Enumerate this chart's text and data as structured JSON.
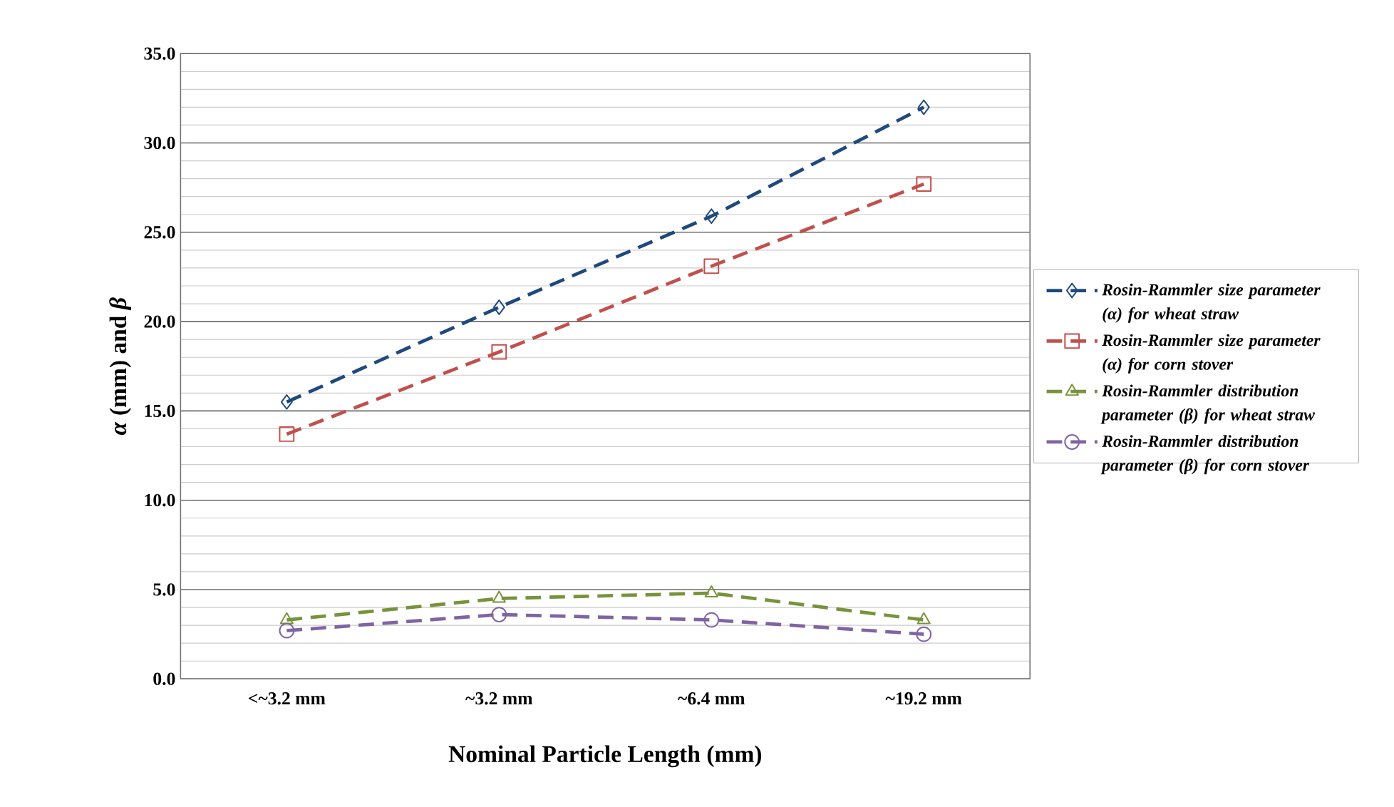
{
  "chart_data": {
    "type": "line",
    "xlabel": "Nominal Particle Length (mm)",
    "ylabel": "*α* (mm) and *β*",
    "categories": [
      "<~3.2 mm",
      "~3.2 mm",
      "~6.4 mm",
      "~19.2 mm"
    ],
    "series": [
      {
        "name": "Rosin-Rammler size parameter (α) for wheat straw",
        "color": "#1f497d",
        "marker": "diamond",
        "line_style": "dashed",
        "values": [
          15.5,
          20.8,
          25.9,
          32.0
        ]
      },
      {
        "name": "Rosin-Rammler size parameter (α) for corn stover",
        "color": "#c0504d",
        "marker": "square",
        "line_style": "dashed",
        "values": [
          13.7,
          18.3,
          23.1,
          27.7
        ]
      },
      {
        "name": "Rosin-Rammler distribution parameter (β) for wheat straw",
        "color": "#77933c",
        "marker": "triangle",
        "line_style": "dashed",
        "values": [
          3.3,
          4.5,
          4.8,
          3.3
        ]
      },
      {
        "name": "Rosin-Rammler distribution parameter (β) for corn stover",
        "color": "#8064a2",
        "marker": "circle",
        "line_style": "dashed",
        "values": [
          2.7,
          3.6,
          3.3,
          2.5
        ]
      }
    ],
    "ylim": [
      0,
      35
    ],
    "yticks": [
      {
        "value": 0,
        "label": "0.0"
      },
      {
        "value": 1,
        "label": null
      },
      {
        "value": 2,
        "label": null
      },
      {
        "value": 3,
        "label": null
      },
      {
        "value": 4,
        "label": null
      },
      {
        "value": 5,
        "label": "5.0"
      },
      {
        "value": 6,
        "label": null
      },
      {
        "value": 7,
        "label": null
      },
      {
        "value": 8,
        "label": null
      },
      {
        "value": 9,
        "label": null
      },
      {
        "value": 10,
        "label": "10.0"
      },
      {
        "value": 11,
        "label": null
      },
      {
        "value": 12,
        "label": null
      },
      {
        "value": 13,
        "label": null
      },
      {
        "value": 14,
        "label": null
      },
      {
        "value": 15,
        "label": "15.0"
      },
      {
        "value": 16,
        "label": null
      },
      {
        "value": 17,
        "label": null
      },
      {
        "value": 18,
        "label": null
      },
      {
        "value": 19,
        "label": null
      },
      {
        "value": 20,
        "label": "20.0"
      },
      {
        "value": 21,
        "label": null
      },
      {
        "value": 22,
        "label": null
      },
      {
        "value": 23,
        "label": null
      },
      {
        "value": 24,
        "label": null
      },
      {
        "value": 25,
        "label": "25.0"
      },
      {
        "value": 26,
        "label": null
      },
      {
        "value": 27,
        "label": null
      },
      {
        "value": 28,
        "label": null
      },
      {
        "value": 29,
        "label": null
      },
      {
        "value": 30,
        "label": "30.0"
      },
      {
        "value": 31,
        "label": null
      },
      {
        "value": 32,
        "label": null
      },
      {
        "value": 33,
        "label": null
      },
      {
        "value": 34,
        "label": null
      },
      {
        "value": 35,
        "label": "35.0"
      }
    ],
    "grid": "y",
    "legend": "right"
  }
}
